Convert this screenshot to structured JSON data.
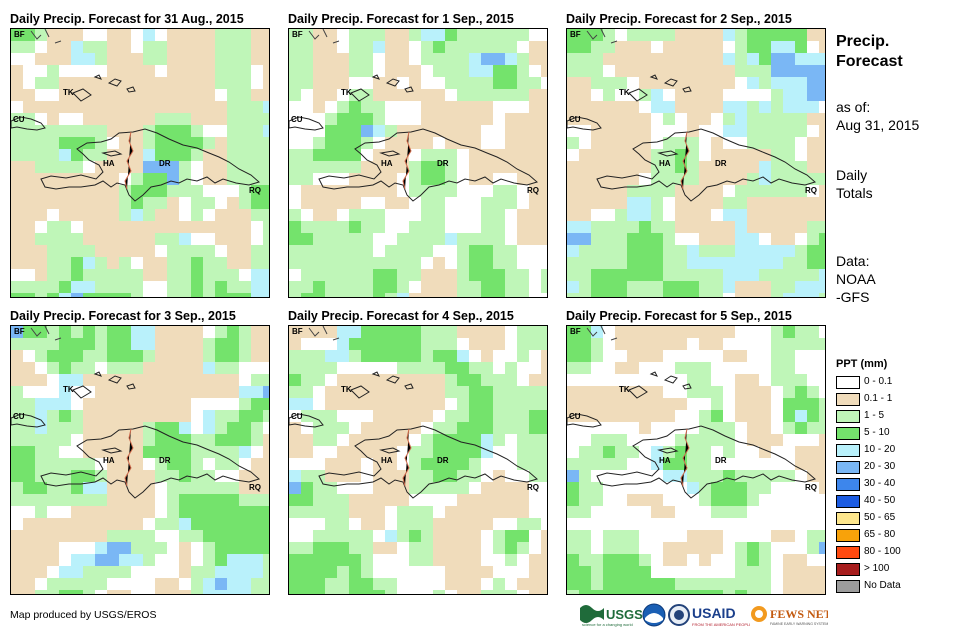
{
  "panels": [
    {
      "title": "Daily Precip. Forecast for 31 Aug., 2015"
    },
    {
      "title": "Daily Precip. Forecast for 1 Sep., 2015"
    },
    {
      "title": "Daily Precip. Forecast for 2 Sep., 2015"
    },
    {
      "title": "Daily Precip. Forecast for 3 Sep., 2015"
    },
    {
      "title": "Daily Precip. Forecast for 4 Sep., 2015"
    },
    {
      "title": "Daily Precip. Forecast for 5 Sep., 2015"
    }
  ],
  "map_labels": {
    "bf": "BF",
    "tk": "TK",
    "cu": "CU",
    "ha": "HA",
    "dr": "DR",
    "rq": "RQ"
  },
  "sidebar": {
    "title": "Precip. Forecast",
    "as_of_label": "as of:",
    "as_of_date": "Aug 31, 2015",
    "totals": "Daily Totals",
    "source_label": "Data:",
    "source": "NOAA-GFS"
  },
  "legend": {
    "title": "PPT (mm)",
    "items": [
      {
        "label": "0 - 0.1",
        "color": "#ffffff"
      },
      {
        "label": "0.1 - 1",
        "color": "#f0dcbb"
      },
      {
        "label": "1 - 5",
        "color": "#bff6b8"
      },
      {
        "label": "5 - 10",
        "color": "#74e36c"
      },
      {
        "label": "10 - 20",
        "color": "#b9f1fb"
      },
      {
        "label": "20 - 30",
        "color": "#7ab7f5"
      },
      {
        "label": "30 - 40",
        "color": "#3d86ec"
      },
      {
        "label": "40 - 50",
        "color": "#1c5ce2"
      },
      {
        "label": "50 - 65",
        "color": "#fde68c"
      },
      {
        "label": "65 - 80",
        "color": "#f8a20a"
      },
      {
        "label": "80 - 100",
        "color": "#ff4a10"
      },
      {
        "label": "> 100",
        "color": "#a71d1d"
      },
      {
        "label": "No Data",
        "color": "#9c9c9c"
      }
    ]
  },
  "footer": {
    "credit": "Map produced by USGS/EROS"
  },
  "logos": {
    "usgs": "USGS",
    "usaid": "USAID",
    "fewsnet": "FEWS NET"
  },
  "density": [
    {
      "tan": 0.42,
      "lg": 0.34,
      "g": 0.08,
      "lb": 0.04,
      "b": 0.01
    },
    {
      "tan": 0.3,
      "lg": 0.38,
      "g": 0.08,
      "lb": 0.02,
      "b": 0.01
    },
    {
      "tan": 0.36,
      "lg": 0.32,
      "g": 0.1,
      "lb": 0.1,
      "b": 0.02
    },
    {
      "tan": 0.32,
      "lg": 0.3,
      "g": 0.16,
      "lb": 0.07,
      "b": 0.02
    },
    {
      "tan": 0.3,
      "lg": 0.33,
      "g": 0.13,
      "lb": 0.02,
      "b": 0.005
    },
    {
      "tan": 0.22,
      "lg": 0.24,
      "g": 0.1,
      "lb": 0.03,
      "b": 0.01
    }
  ]
}
